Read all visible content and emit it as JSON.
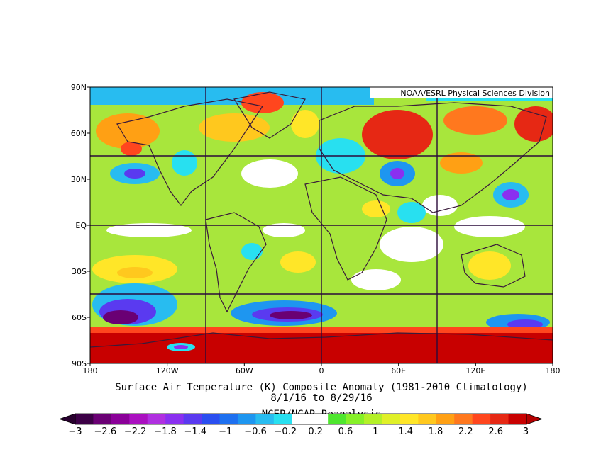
{
  "credit": "NOAA/ESRL Physical Sciences Division",
  "title": "Surface Air Temperature (K) Composite Anomaly (1981-2010 Climatology)",
  "date_range": "8/1/16  to 8/29/16",
  "source": "NCEP/NCAR Reanalysis",
  "lat_labels": [
    "90N",
    "60N",
    "30N",
    "EQ",
    "30S",
    "60S",
    "90S"
  ],
  "lon_labels": [
    "180",
    "120W",
    "60W",
    "0",
    "60E",
    "120E",
    "180"
  ],
  "colorbar": {
    "min": -3,
    "max": 3,
    "labels": [
      "-3",
      "-2.6",
      "-2.2",
      "-1.8",
      "-1.4",
      "-1",
      "-0.6",
      "-0.2",
      "0.2",
      "0.6",
      "1",
      "1.4",
      "1.8",
      "2.2",
      "2.6",
      "3"
    ],
    "colors": [
      "#3c0046",
      "#6a0074",
      "#8a0098",
      "#aa10c0",
      "#b030e0",
      "#8a30f0",
      "#5a3af0",
      "#2a4ef0",
      "#1e70f0",
      "#1e96f0",
      "#28bcf0",
      "#28e0f0",
      "#ffffff",
      "#ffffff",
      "#4ee62e",
      "#86f028",
      "#b4f028",
      "#e0f028",
      "#ffe628",
      "#ffc81e",
      "#ffa014",
      "#ff781e",
      "#ff461e",
      "#e62814",
      "#c80000"
    ],
    "under_color": "#28002e",
    "over_color": "#b40000"
  },
  "map_colors": {
    "background": "#a8e63c",
    "coast": "#3a1a3a",
    "grid": "#2a0a3a"
  }
}
